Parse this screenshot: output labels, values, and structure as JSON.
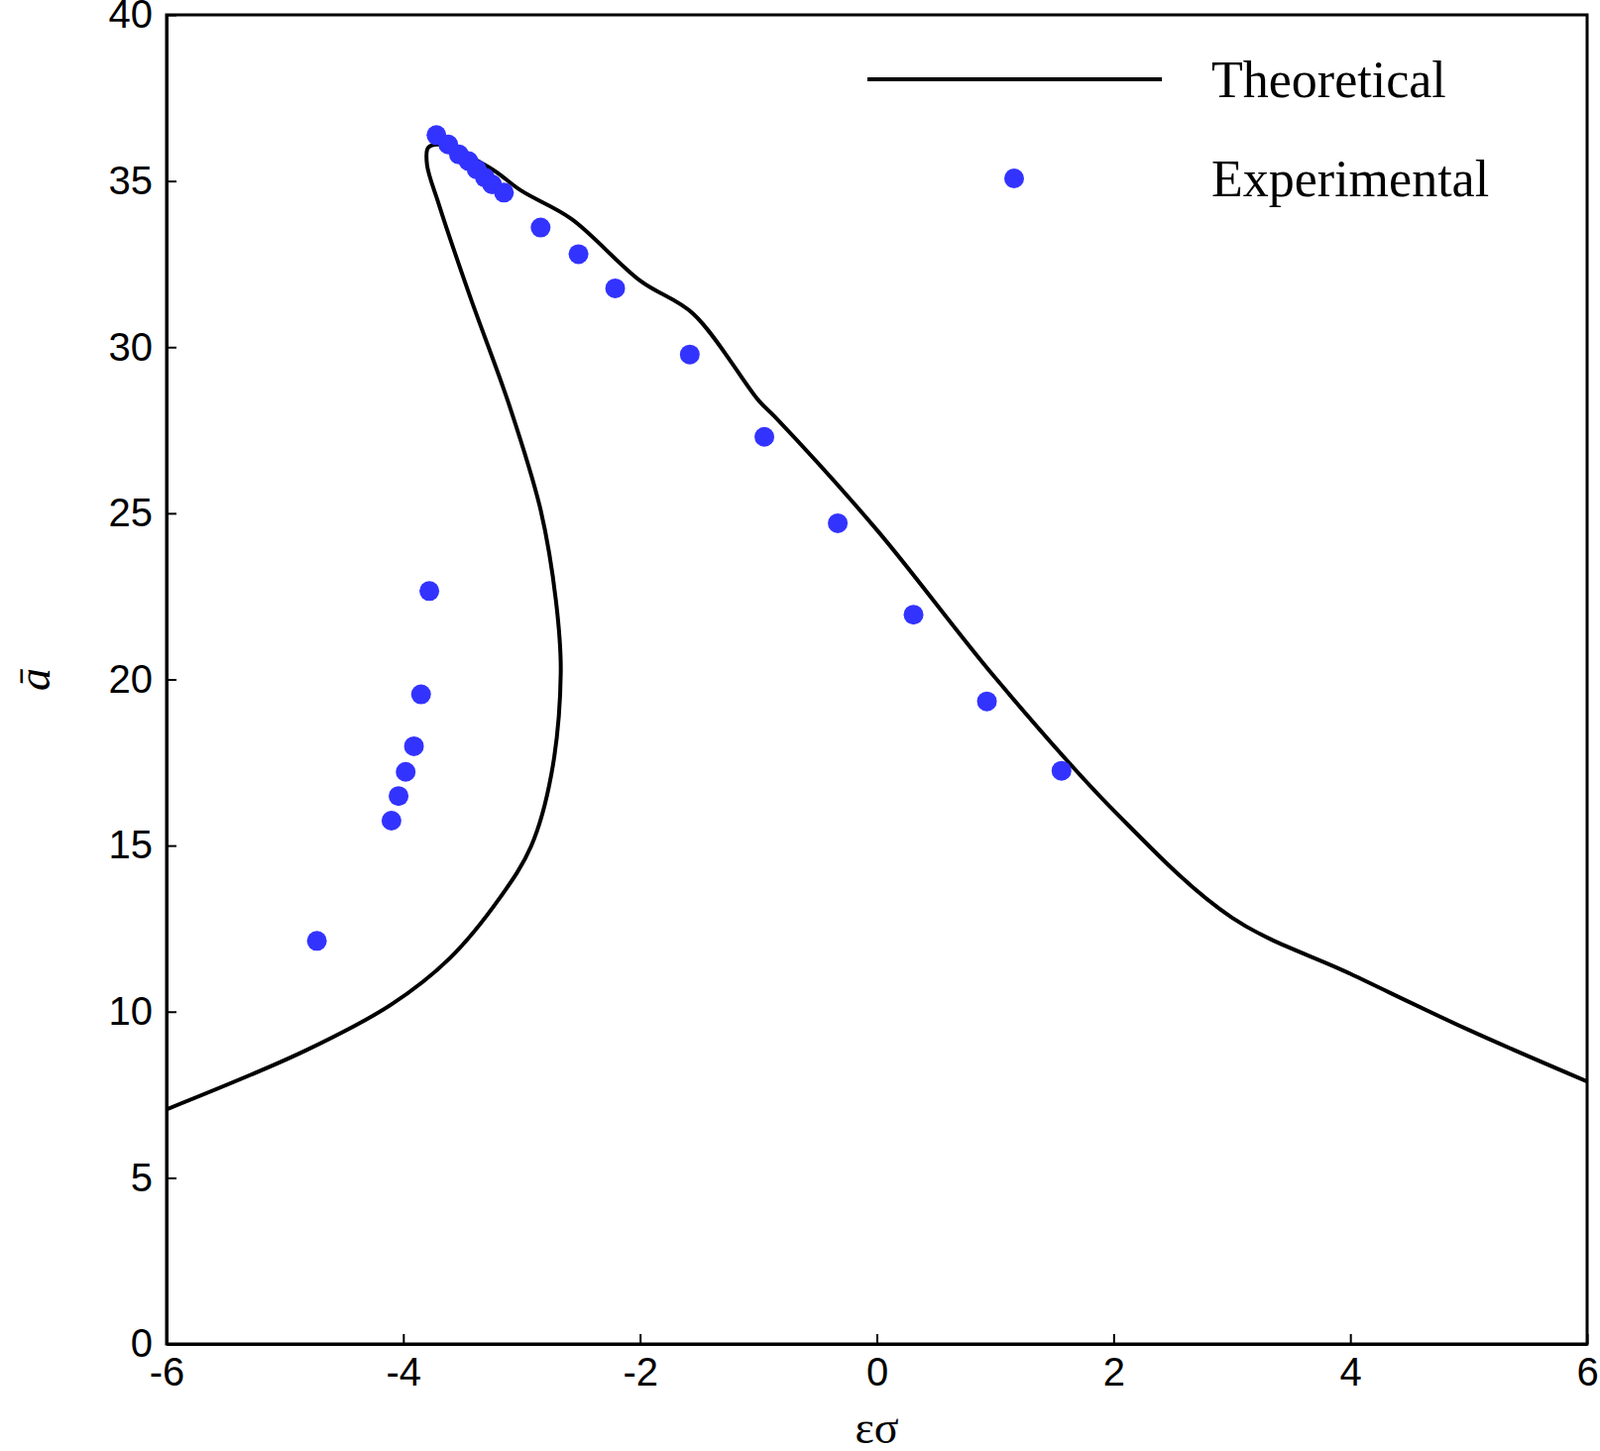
{
  "chart_data": {
    "type": "line",
    "x_label": "εσ",
    "y_label": "ā",
    "xlim": [
      -6,
      6
    ],
    "ylim": [
      0,
      40
    ],
    "xticks": [
      -6,
      -4,
      -2,
      0,
      2,
      4,
      6
    ],
    "yticks": [
      0,
      5,
      10,
      15,
      20,
      25,
      30,
      35,
      40
    ],
    "legend": "upper right",
    "series": [
      {
        "name": "Theoretical",
        "type": "line",
        "color": "#000000",
        "line_style": "solid",
        "x": [
          -6,
          -4.82,
          -4.1,
          -3.61,
          -3.18,
          -2.92,
          -2.75,
          -2.67,
          -2.71,
          -2.84,
          -3.1,
          -3.44,
          -3.7,
          -3.8,
          -3.79,
          -3.7,
          -3.27,
          -3.0,
          -2.58,
          -2.0,
          -1.55,
          -1.0,
          -0.86,
          0,
          1,
          2,
          3,
          4,
          5,
          6
        ],
        "values": [
          7.06,
          8.84,
          10.22,
          11.6,
          13.45,
          14.98,
          17.13,
          20.2,
          22.35,
          25.1,
          28.2,
          31.56,
          34.3,
          35.5,
          36.0,
          36.1,
          35.4,
          34.7,
          33.86,
          32.0,
          31.0,
          28.4,
          27.9,
          24.5,
          20.05,
          16.06,
          12.83,
          11.14,
          9.45,
          7.9
        ]
      },
      {
        "name": "Experimental",
        "type": "scatter",
        "color": "#3333ff",
        "marker": "circle",
        "x": [
          -3.72,
          -3.62,
          -3.53,
          -3.45,
          -3.38,
          -3.31,
          -3.25,
          -3.15,
          -2.84,
          -2.52,
          -2.21,
          -1.58,
          -0.95,
          -0.33,
          0.31,
          0.93,
          1.56,
          -3.78,
          -3.85,
          -3.91,
          -3.98,
          -4.04,
          -4.1,
          -4.73
        ],
        "values": [
          36.38,
          36.1,
          35.8,
          35.6,
          35.35,
          35.1,
          34.9,
          34.65,
          33.6,
          32.8,
          31.77,
          29.78,
          27.3,
          24.7,
          21.95,
          19.34,
          17.25,
          22.66,
          19.55,
          17.99,
          17.22,
          16.49,
          15.75,
          12.13
        ]
      }
    ]
  }
}
